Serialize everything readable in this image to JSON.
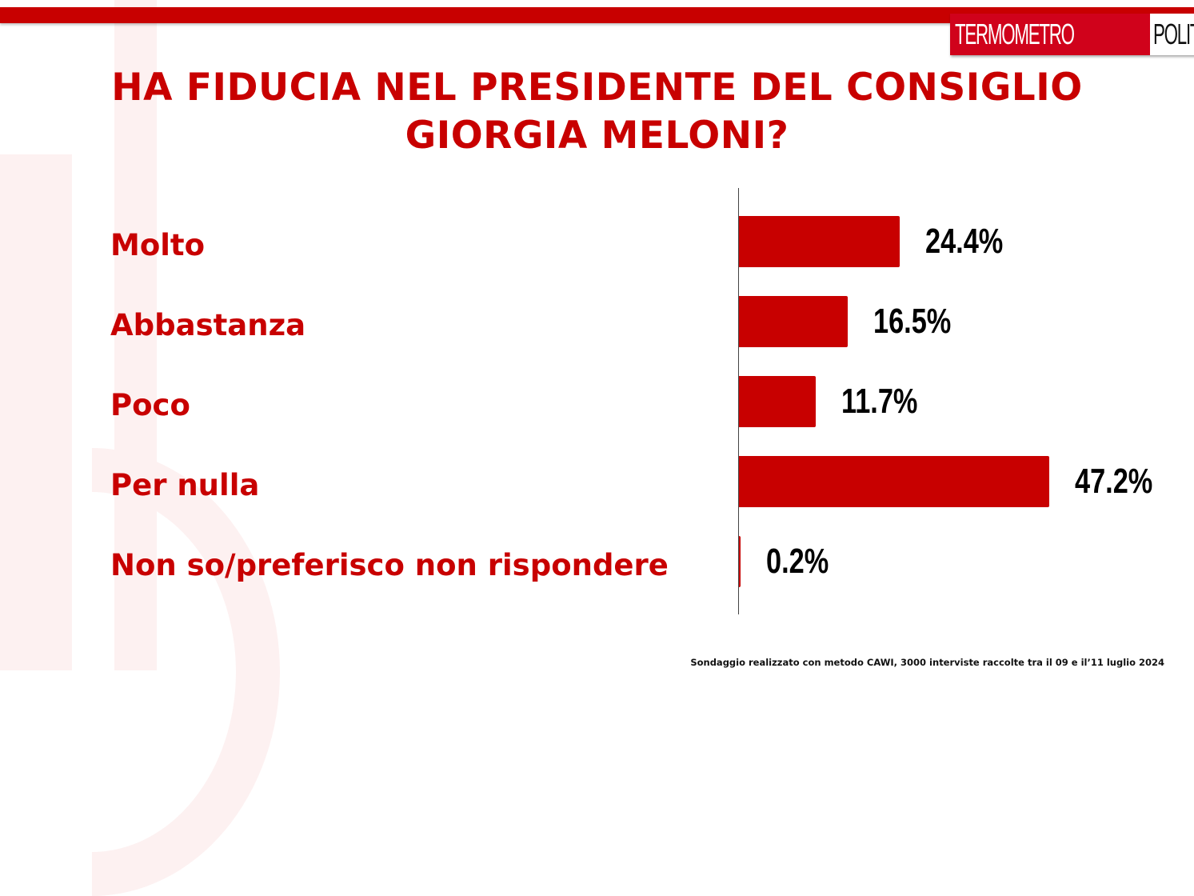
{
  "header": {
    "logo": {
      "left": "TERMOMETRO",
      "right": "POLITICO"
    },
    "title_line1": "HA FIDUCIA NEL PRESIDENTE DEL CONSIGLIO",
    "title_line2": "GIORGIA MELONI?"
  },
  "colors": {
    "accent": "#c80000",
    "logo_red": "#d0021b",
    "text_dark": "#000000",
    "watermark": "#fdf1f1"
  },
  "footnote": "Sondaggio realizzato con metodo CAWI, 3000 interviste raccolte tra il 09 e il’11 luglio 2024",
  "chart_data": {
    "type": "bar",
    "orientation": "horizontal",
    "title": "HA FIDUCIA NEL PRESIDENTE DEL CONSIGLIO GIORGIA MELONI?",
    "categories": [
      "Molto",
      "Abbastanza",
      "Poco",
      "Per nulla",
      "Non so/preferisco non rispondere"
    ],
    "values": [
      24.4,
      16.5,
      11.7,
      47.2,
      0.2
    ],
    "value_labels": [
      "24.4%",
      "16.5%",
      "11.7%",
      "47.2%",
      "0.2%"
    ],
    "xlabel": "",
    "ylabel": "",
    "xlim": [
      0,
      50
    ],
    "grid": false,
    "legend": null,
    "bar_color": "#c80000"
  }
}
